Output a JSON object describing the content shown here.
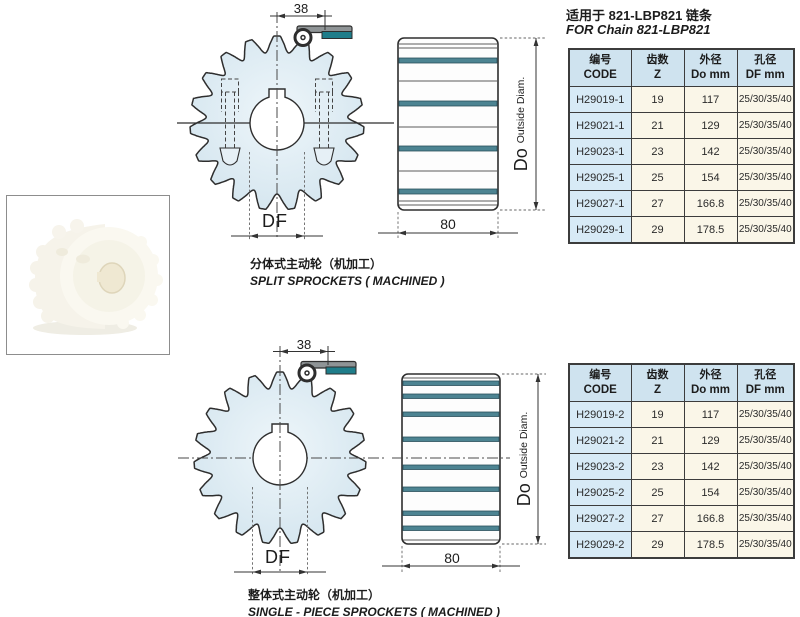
{
  "header": {
    "title_zh": "适用于 821-LBP821 链条",
    "title_en": "FOR Chain 821-LBP821"
  },
  "diagrams": [
    {
      "caption_zh": "分体式主动轮（机加工）",
      "caption_en": "SPLIT SPROCKETS ( MACHINED )",
      "dims": {
        "width": "38",
        "bore": "DF",
        "length": "80",
        "od": "Do",
        "od_note": "Outside Diam."
      }
    },
    {
      "caption_zh": "整体式主动轮（机加工）",
      "caption_en": "SINGLE - PIECE SPROCKETS ( MACHINED )",
      "dims": {
        "width": "38",
        "bore": "DF",
        "length": "80",
        "od": "Do",
        "od_note": "Outside Diam."
      }
    }
  ],
  "tables": [
    {
      "name": "split-sprockets",
      "columns": [
        {
          "zh": "编号",
          "en": "CODE"
        },
        {
          "zh": "齿数",
          "en": "Z"
        },
        {
          "zh": "外径",
          "en": "Do mm"
        },
        {
          "zh": "孔径",
          "en": "DF mm"
        }
      ],
      "rows": [
        [
          "H29019-1",
          "19",
          "117",
          "25/30/35/40"
        ],
        [
          "H29021-1",
          "21",
          "129",
          "25/30/35/40"
        ],
        [
          "H29023-1",
          "23",
          "142",
          "25/30/35/40"
        ],
        [
          "H29025-1",
          "25",
          "154",
          "25/30/35/40"
        ],
        [
          "H29027-1",
          "27",
          "166.8",
          "25/30/35/40"
        ],
        [
          "H29029-1",
          "29",
          "178.5",
          "25/30/35/40"
        ]
      ]
    },
    {
      "name": "single-piece-sprockets",
      "columns": [
        {
          "zh": "编号",
          "en": "CODE"
        },
        {
          "zh": "齿数",
          "en": "Z"
        },
        {
          "zh": "外径",
          "en": "Do mm"
        },
        {
          "zh": "孔径",
          "en": "DF mm"
        }
      ],
      "rows": [
        [
          "H29019-2",
          "19",
          "117",
          "25/30/35/40"
        ],
        [
          "H29021-2",
          "21",
          "129",
          "25/30/35/40"
        ],
        [
          "H29023-2",
          "23",
          "142",
          "25/30/35/40"
        ],
        [
          "H29025-2",
          "25",
          "154",
          "25/30/35/40"
        ],
        [
          "H29027-2",
          "27",
          "166.8",
          "25/30/35/40"
        ],
        [
          "H29029-2",
          "29",
          "178.5",
          "25/30/35/40"
        ]
      ]
    }
  ],
  "colors": {
    "chain_teal": "#1f7d8a",
    "stripe_teal": "#4d8492",
    "drawing_fill": "#dcebf3",
    "table_header_bg": "#cfe3ef",
    "table_code_bg": "#d7eaf6",
    "table_cell_bg": "#faf6e8",
    "line_dark": "#2e2e2e"
  }
}
